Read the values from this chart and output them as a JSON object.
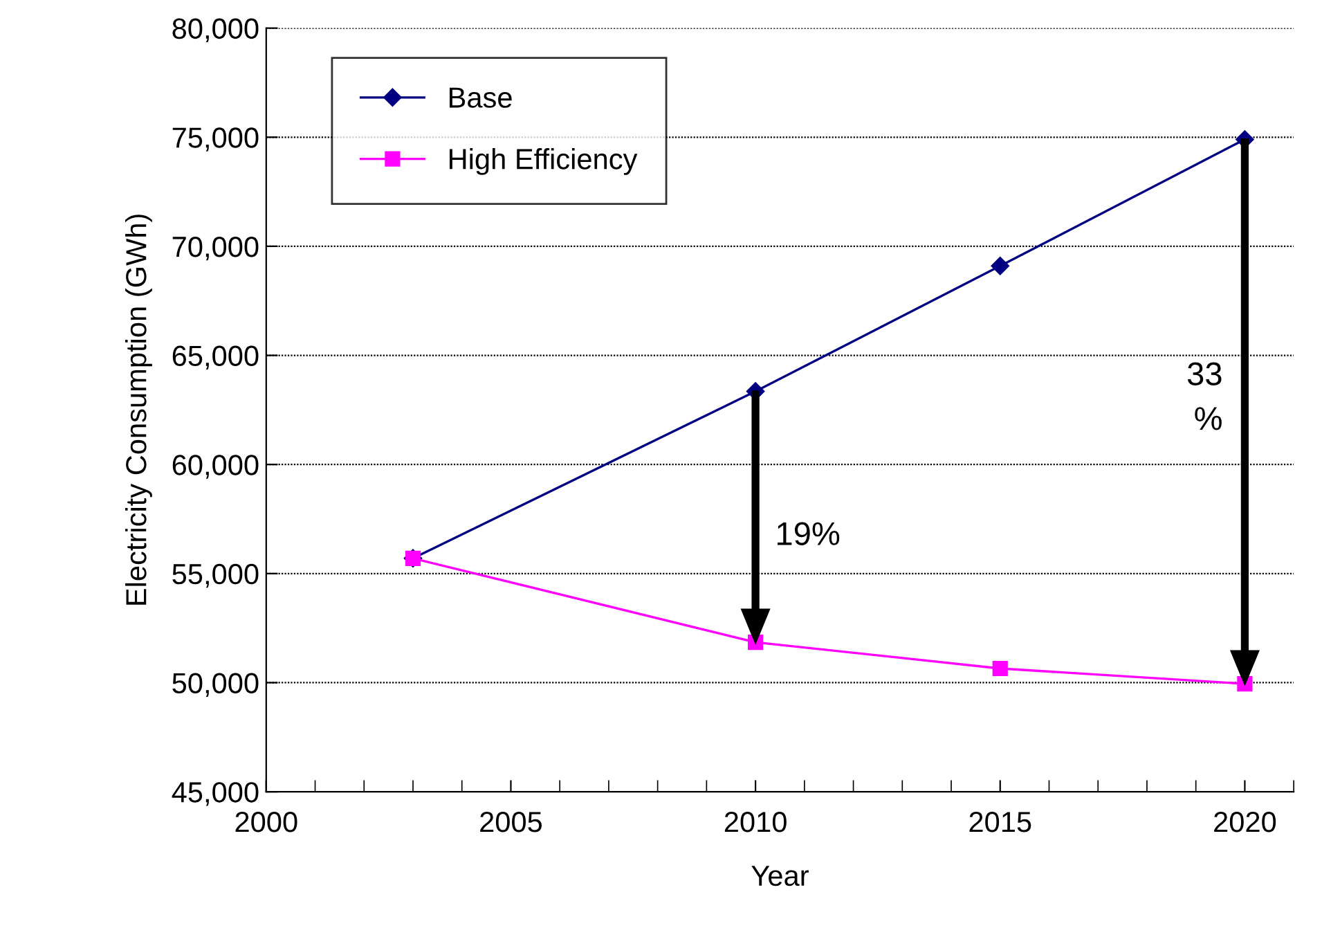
{
  "chart_data": {
    "type": "line",
    "xlabel": "Year",
    "ylabel": "Electricity Consumption (GWh)",
    "xlim": [
      2000,
      2021
    ],
    "xticks": [
      2000,
      2005,
      2010,
      2015,
      2020
    ],
    "ylim": [
      45000,
      80000
    ],
    "yticks": [
      {
        "value": 45000,
        "label": "45,000"
      },
      {
        "value": 50000,
        "label": "50,000"
      },
      {
        "value": 55000,
        "label": "55,000"
      },
      {
        "value": 60000,
        "label": "60,000"
      },
      {
        "value": 65000,
        "label": "65,000"
      },
      {
        "value": 70000,
        "label": "70,000"
      },
      {
        "value": 75000,
        "label": "75,000"
      },
      {
        "value": 80000,
        "label": "80,000"
      }
    ],
    "grid": "y",
    "legend": "top left",
    "series": [
      {
        "name": "Base",
        "color": "#000080",
        "marker": "diamond",
        "x": [
          2003,
          2010,
          2015,
          2020
        ],
        "values": [
          55700,
          63350,
          69100,
          74900
        ]
      },
      {
        "name": "High Efficiency",
        "color": "#ff00ff",
        "marker": "square",
        "x": [
          2003,
          2010,
          2015,
          2020
        ],
        "values": [
          55700,
          51850,
          50650,
          49950
        ]
      }
    ],
    "annotations": [
      "19%",
      "33\n%"
    ]
  }
}
